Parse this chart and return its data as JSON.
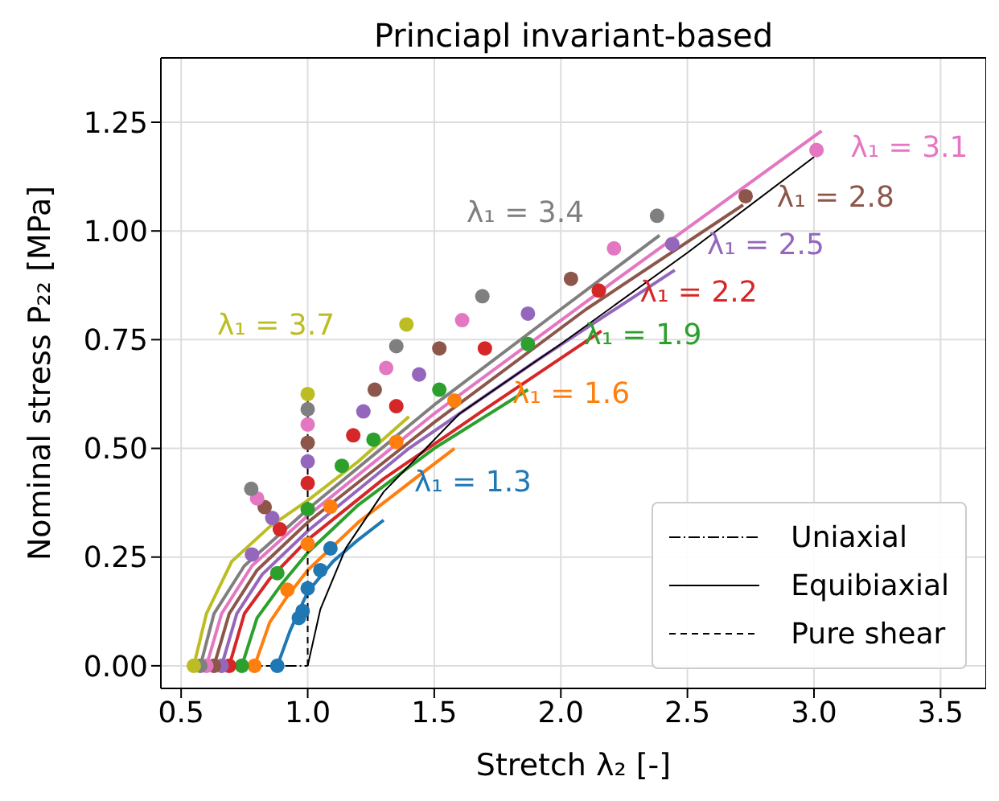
{
  "chart_data": {
    "type": "line",
    "title": "Princiapl invariant-based",
    "xlabel": "Stretch λ₂ [-]",
    "ylabel": "Nominal stress P₂₂ [MPa]",
    "xlim": [
      0.42,
      3.68
    ],
    "ylim": [
      -0.052,
      1.398
    ],
    "xticks": [
      0.5,
      {
        "value": 1,
        "label": "1.0"
      },
      1.5,
      {
        "value": 2,
        "label": "2.0"
      },
      2.5,
      {
        "value": 3,
        "label": "3.0"
      },
      3.5
    ],
    "yticks": [
      {
        "value": 0,
        "label": "0.00"
      },
      {
        "value": 0.25,
        "label": "0.25"
      },
      {
        "value": 0.5,
        "label": "0.50"
      },
      {
        "value": 0.75,
        "label": "0.75"
      },
      {
        "value": 1,
        "label": "1.00"
      },
      {
        "value": 1.25,
        "label": "1.25"
      }
    ],
    "grid": true,
    "legend": "bottom right",
    "line_style": "solid",
    "series": [
      {
        "color": "#1f77b4",
        "x": [
          0.88,
          0.93,
          1.0,
          1.1,
          1.2,
          1.3
        ],
        "values": [
          0,
          0.08,
          0.17,
          0.24,
          0.29,
          0.335
        ]
      },
      {
        "color": "#ff7f0e",
        "x": [
          0.79,
          0.85,
          0.92,
          1.0,
          1.2,
          1.4,
          1.58
        ],
        "values": [
          0,
          0.1,
          0.16,
          0.22,
          0.33,
          0.42,
          0.5
        ]
      },
      {
        "color": "#2ca02c",
        "x": [
          0.74,
          0.8,
          0.9,
          1.0,
          1.2,
          1.5,
          1.87
        ],
        "values": [
          0,
          0.11,
          0.19,
          0.26,
          0.37,
          0.5,
          0.635
        ]
      },
      {
        "color": "#d62728",
        "x": [
          0.69,
          0.75,
          0.85,
          1.0,
          1.3,
          1.7,
          2.16
        ],
        "values": [
          0,
          0.12,
          0.2,
          0.29,
          0.43,
          0.59,
          0.77
        ]
      },
      {
        "color": "#9467bd",
        "x": [
          0.66,
          0.72,
          0.82,
          1.0,
          1.4,
          1.9,
          2.45
        ],
        "values": [
          0,
          0.12,
          0.21,
          0.31,
          0.5,
          0.7,
          0.91
        ]
      },
      {
        "color": "#8c564b",
        "x": [
          0.63,
          0.69,
          0.8,
          1.0,
          1.5,
          2.1,
          2.72
        ],
        "values": [
          0,
          0.12,
          0.22,
          0.33,
          0.56,
          0.82,
          1.06
        ]
      },
      {
        "color": "#e377c2",
        "x": [
          0.6,
          0.66,
          0.78,
          1.0,
          1.5,
          2.2,
          3.03
        ],
        "values": [
          0,
          0.12,
          0.23,
          0.345,
          0.58,
          0.88,
          1.23
        ]
      },
      {
        "color": "#7f7f7f",
        "x": [
          0.576,
          0.63,
          0.75,
          1.0,
          1.5,
          2.0,
          2.39
        ],
        "values": [
          0,
          0.12,
          0.23,
          0.36,
          0.6,
          0.82,
          0.99
        ]
      },
      {
        "color": "#bcbd22",
        "x": [
          0.55,
          0.6,
          0.7,
          0.85,
          1.0,
          1.2,
          1.4
        ],
        "values": [
          0,
          0.12,
          0.24,
          0.32,
          0.38,
          0.47,
          0.573
        ]
      },
      {
        "type": "scatter",
        "marker": "circle",
        "color": "#1f77b4",
        "x": [
          0.88,
          0.965,
          0.98,
          1.0,
          1.05,
          1.09
        ],
        "values": [
          0,
          0.11,
          0.126,
          0.178,
          0.22,
          0.27
        ]
      },
      {
        "type": "scatter",
        "marker": "circle",
        "color": "#ff7f0e",
        "x": [
          0.79,
          0.92,
          1.0,
          1.09,
          1.35,
          1.58
        ],
        "values": [
          0,
          0.175,
          0.28,
          0.366,
          0.515,
          0.61
        ]
      },
      {
        "type": "scatter",
        "marker": "circle",
        "color": "#2ca02c",
        "x": [
          0.74,
          0.88,
          1.0,
          1.135,
          1.26,
          1.52,
          1.87
        ],
        "values": [
          0,
          0.213,
          0.36,
          0.46,
          0.52,
          0.635,
          0.74
        ]
      },
      {
        "type": "scatter",
        "marker": "circle",
        "color": "#d62728",
        "x": [
          0.69,
          0.89,
          1.0,
          1.18,
          1.35,
          1.7,
          2.15
        ],
        "values": [
          0,
          0.314,
          0.42,
          0.53,
          0.597,
          0.73,
          0.863
        ]
      },
      {
        "type": "scatter",
        "marker": "circle",
        "color": "#9467bd",
        "x": [
          0.66,
          0.78,
          0.86,
          1.0,
          1.22,
          1.44,
          1.87,
          2.44
        ],
        "values": [
          0,
          0.256,
          0.34,
          0.47,
          0.585,
          0.67,
          0.81,
          0.97
        ]
      },
      {
        "type": "scatter",
        "marker": "circle",
        "color": "#8c564b",
        "x": [
          0.63,
          0.83,
          1.0,
          1.265,
          1.52,
          2.04,
          2.73
        ],
        "values": [
          0,
          0.365,
          0.513,
          0.635,
          0.73,
          0.89,
          1.08
        ]
      },
      {
        "type": "scatter",
        "marker": "circle",
        "color": "#e377c2",
        "x": [
          0.6,
          0.8,
          1.0,
          1.31,
          1.61,
          2.21,
          3.01
        ],
        "values": [
          0,
          0.385,
          0.555,
          0.685,
          0.795,
          0.96,
          1.186
        ]
      },
      {
        "type": "scatter",
        "marker": "circle",
        "color": "#7f7f7f",
        "x": [
          0.576,
          0.777,
          1.0,
          1.35,
          1.69,
          2.38
        ],
        "values": [
          0,
          0.407,
          0.59,
          0.735,
          0.85,
          1.035
        ]
      },
      {
        "type": "scatter",
        "marker": "circle",
        "color": "#bcbd22",
        "x": [
          0.55,
          1.0,
          1.39
        ],
        "values": [
          0,
          0.625,
          0.785
        ]
      },
      {
        "name": "Uniaxial",
        "line_style": "dashdot",
        "color": "#000000",
        "x": [
          0.53,
          1.0
        ],
        "values": [
          0,
          0
        ]
      },
      {
        "name": "Equibiaxial",
        "line_style": "solid",
        "color": "#000000",
        "x": [
          1.0,
          1.05,
          1.15,
          1.3,
          1.6,
          2.0,
          2.5,
          3.0
        ],
        "values": [
          0,
          0.13,
          0.27,
          0.4,
          0.58,
          0.74,
          0.95,
          1.17
        ]
      },
      {
        "name": "Pure shear",
        "line_style": "dashed",
        "color": "#000000",
        "x": [
          1.0,
          1.0
        ],
        "values": [
          0,
          0.63
        ]
      }
    ],
    "annotations": [
      {
        "text": "λ₁ = 1.3",
        "x": 1.3,
        "y": 0.335
      },
      {
        "text": "λ₁ = 1.6",
        "x": 1.58,
        "y": 0.5
      },
      {
        "text": "λ₁ = 1.9",
        "x": 1.87,
        "y": 0.635
      },
      {
        "text": "λ₁ = 2.2",
        "x": 2.16,
        "y": 0.77
      },
      {
        "text": "λ₁ = 2.5",
        "x": 2.45,
        "y": 0.91
      },
      {
        "text": "λ₁ = 2.8",
        "x": 2.72,
        "y": 1.06
      },
      {
        "text": "λ₁ = 3.1",
        "x": 3.03,
        "y": 1.23
      },
      "λ₁ = 3.4",
      "λ₁ = 3.7"
    ]
  }
}
